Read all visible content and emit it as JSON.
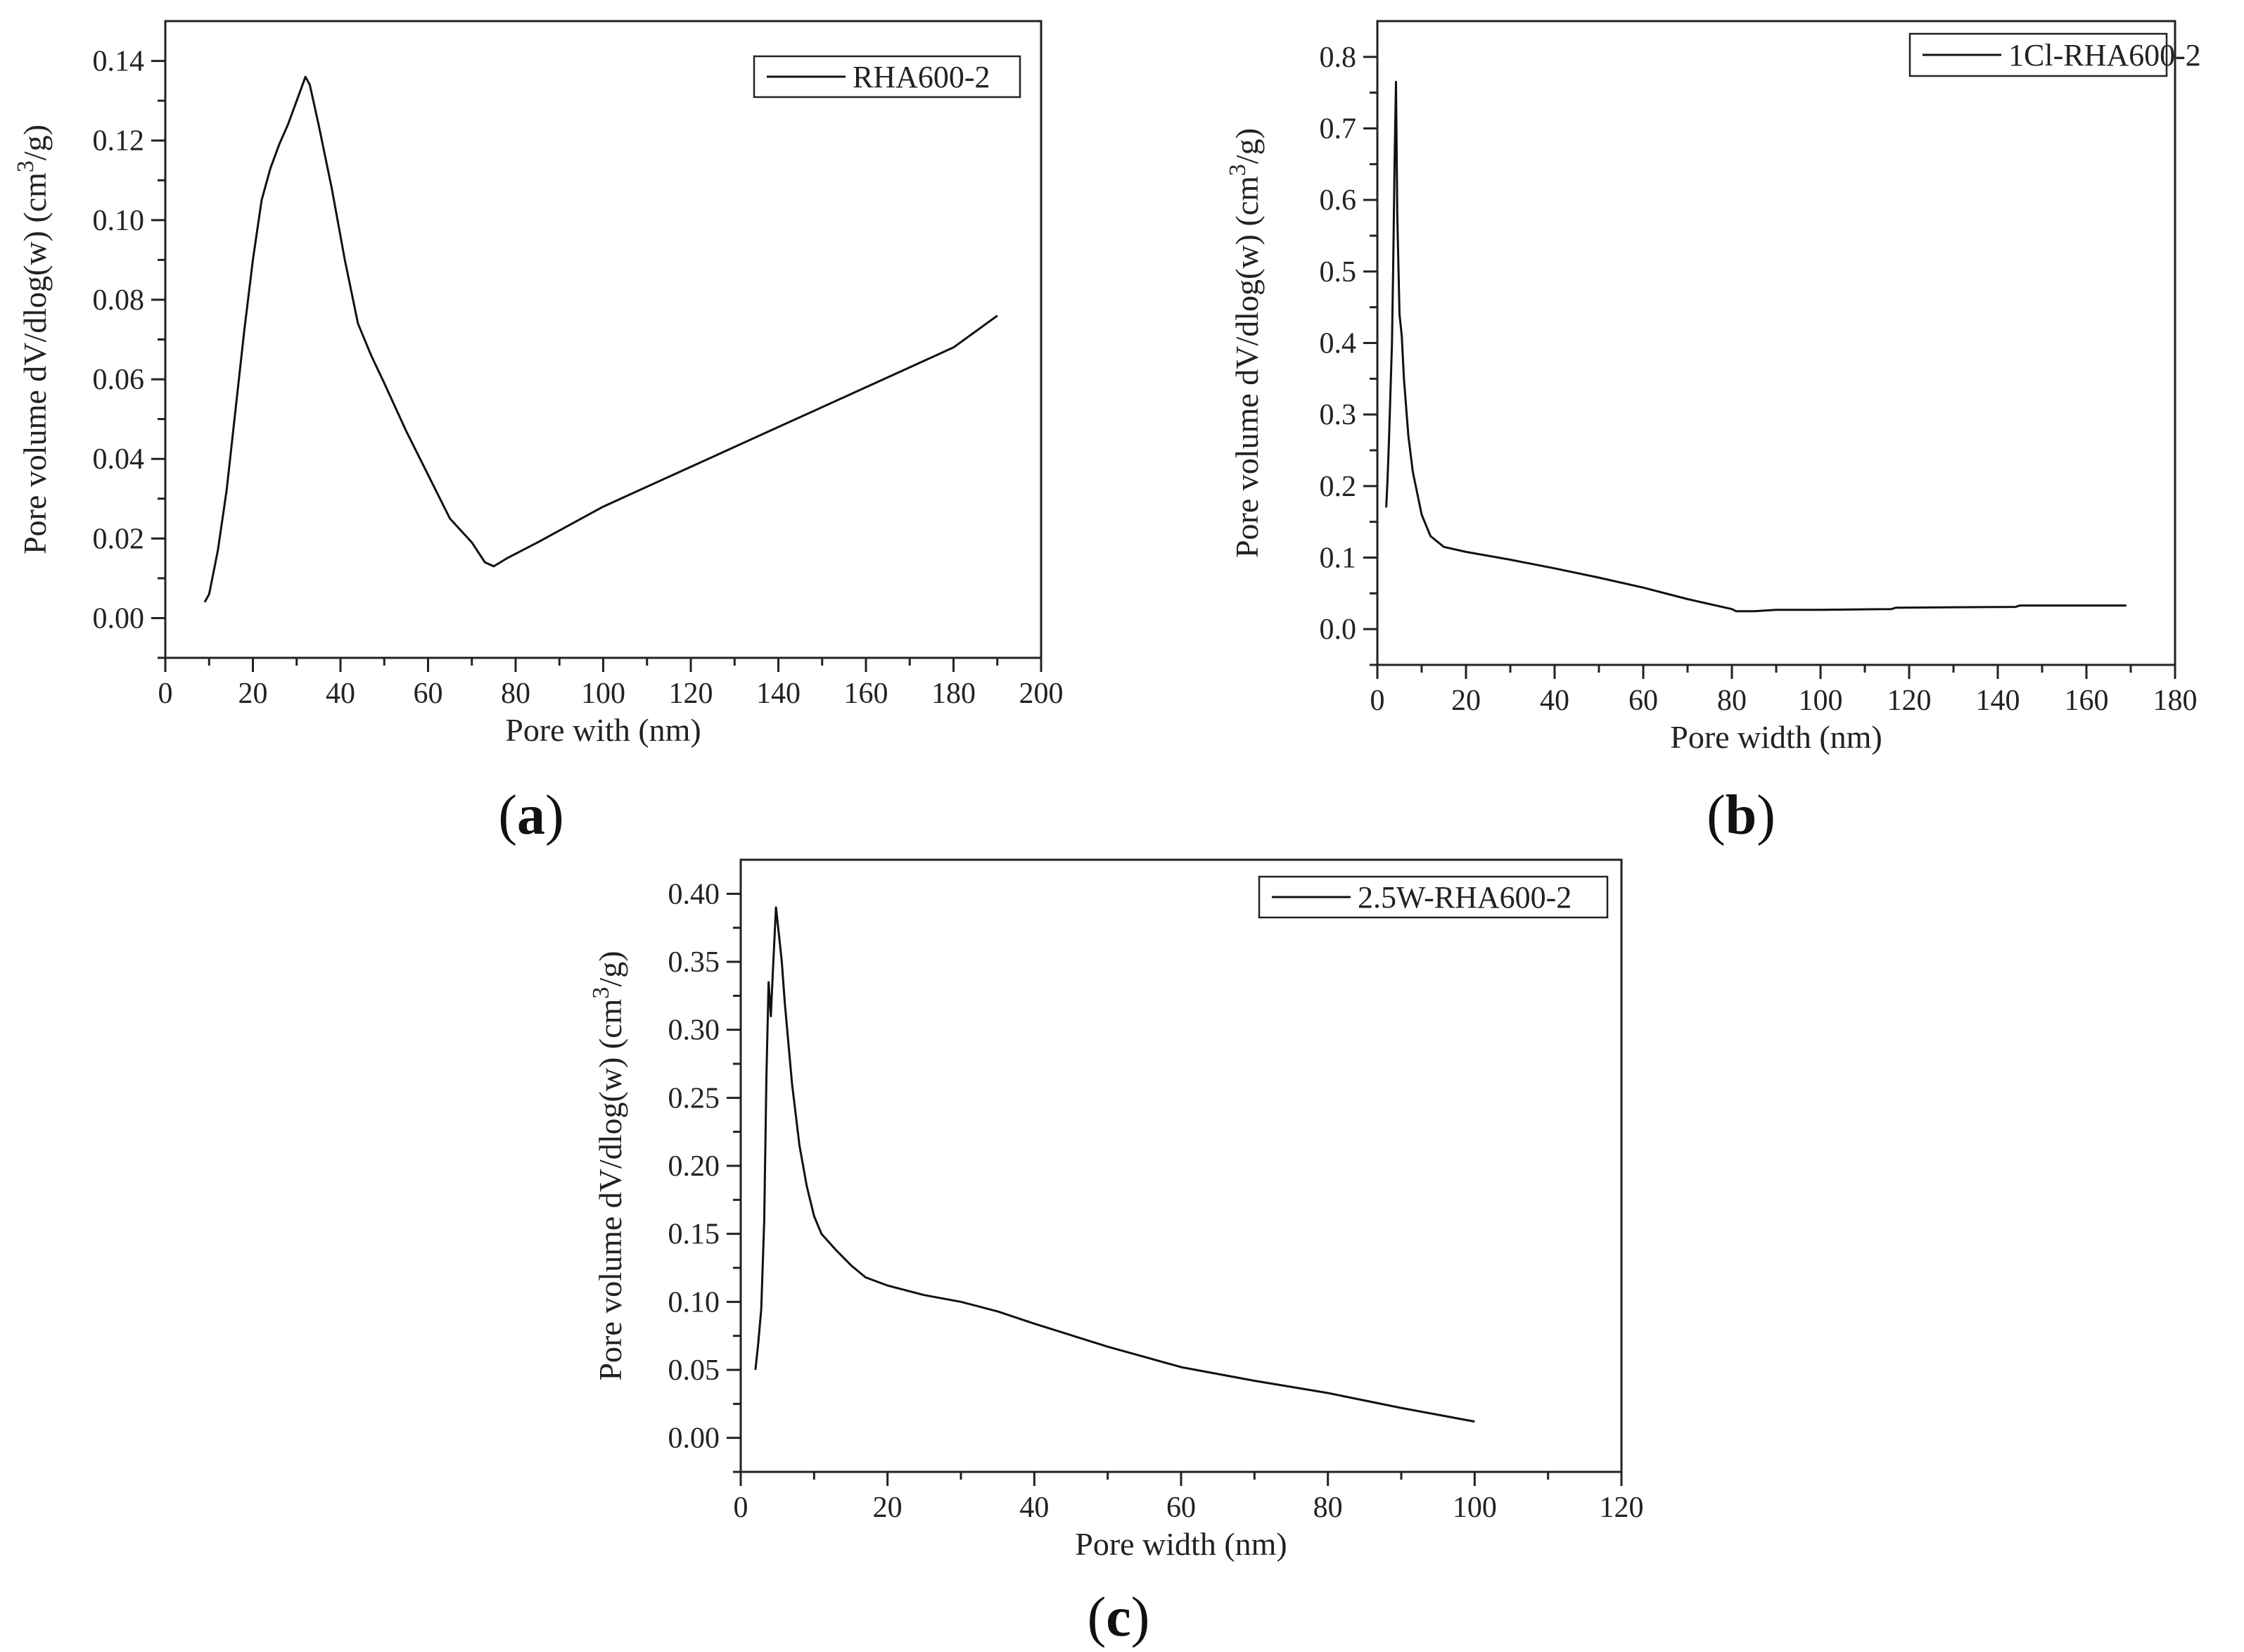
{
  "chart_data": [
    {
      "type": "line",
      "panel_label": "a",
      "xlabel": "Pore with (nm)",
      "ylabel_text": "Pore volume dV/dlog(w) (cm",
      "ylabel_sup": "3",
      "ylabel_tail": "/g)",
      "xlim": [
        0,
        200
      ],
      "ylim": [
        -0.01,
        0.15
      ],
      "xticks": [
        0,
        20,
        40,
        60,
        80,
        100,
        120,
        140,
        160,
        180,
        200
      ],
      "yticks": [
        0.0,
        0.02,
        0.04,
        0.06,
        0.08,
        0.1,
        0.12,
        0.14
      ],
      "ytick_labels": [
        "0.00",
        "0.02",
        "0.04",
        "0.06",
        "0.08",
        "0.10",
        "0.12",
        "0.14"
      ],
      "legend_position": "top-right",
      "series": [
        {
          "name": "RHA600-2",
          "x": [
            9,
            10,
            12,
            14,
            16,
            18,
            20,
            22,
            24,
            26,
            28,
            30,
            31,
            32,
            33,
            35,
            38,
            41,
            44,
            47,
            50,
            55,
            60,
            65,
            70,
            73,
            75,
            78,
            85,
            100,
            120,
            140,
            160,
            180,
            190
          ],
          "y": [
            0.004,
            0.006,
            0.017,
            0.032,
            0.052,
            0.072,
            0.09,
            0.105,
            0.113,
            0.119,
            0.124,
            0.13,
            0.133,
            0.136,
            0.134,
            0.124,
            0.108,
            0.09,
            0.074,
            0.066,
            0.059,
            0.047,
            0.036,
            0.025,
            0.019,
            0.014,
            0.013,
            0.015,
            0.019,
            0.028,
            0.038,
            0.048,
            0.058,
            0.068,
            0.076
          ]
        }
      ]
    },
    {
      "type": "line",
      "panel_label": "b",
      "xlabel": "Pore width (nm)",
      "ylabel_text": "Pore volume dV/dlog(w) (cm",
      "ylabel_sup": "3",
      "ylabel_tail": "/g)",
      "xlim": [
        0,
        180
      ],
      "ylim": [
        -0.05,
        0.85
      ],
      "xticks": [
        0,
        20,
        40,
        60,
        80,
        100,
        120,
        140,
        160,
        180
      ],
      "yticks": [
        0.0,
        0.1,
        0.2,
        0.3,
        0.4,
        0.5,
        0.6,
        0.7,
        0.8
      ],
      "ytick_labels": [
        "0.0",
        "0.1",
        "0.2",
        "0.3",
        "0.4",
        "0.5",
        "0.6",
        "0.7",
        "0.8"
      ],
      "legend_position": "top-right",
      "series": [
        {
          "name": "1Cl-RHA600-2",
          "x": [
            2.0,
            2.3,
            2.6,
            3.0,
            3.3,
            3.6,
            3.9,
            4.2,
            4.5,
            5.0,
            5.5,
            6.0,
            7.0,
            8.0,
            9.0,
            10,
            12,
            15,
            20,
            30,
            40,
            50,
            60,
            70,
            80,
            81,
            85,
            90,
            100,
            116,
            117,
            144,
            145,
            169
          ],
          "y": [
            0.17,
            0.21,
            0.26,
            0.34,
            0.4,
            0.52,
            0.66,
            0.765,
            0.58,
            0.44,
            0.41,
            0.35,
            0.27,
            0.22,
            0.19,
            0.16,
            0.13,
            0.115,
            0.108,
            0.097,
            0.085,
            0.072,
            0.058,
            0.042,
            0.028,
            0.025,
            0.025,
            0.027,
            0.027,
            0.028,
            0.03,
            0.031,
            0.033,
            0.033
          ]
        }
      ]
    },
    {
      "type": "line",
      "panel_label": "c",
      "xlabel": "Pore width (nm)",
      "ylabel_text": "Pore volume dV/dlog(w) (cm",
      "ylabel_sup": "3",
      "ylabel_tail": "/g)",
      "xlim": [
        0,
        120
      ],
      "ylim": [
        -0.025,
        0.425
      ],
      "xticks": [
        0,
        20,
        40,
        60,
        80,
        100,
        120
      ],
      "yticks": [
        0.0,
        0.05,
        0.1,
        0.15,
        0.2,
        0.25,
        0.3,
        0.35,
        0.4
      ],
      "ytick_labels": [
        "0.00",
        "0.05",
        "0.10",
        "0.15",
        "0.20",
        "0.25",
        "0.30",
        "0.35",
        "0.40"
      ],
      "legend_position": "top-right",
      "series": [
        {
          "name": "2.5W-RHA600-2",
          "x": [
            2.0,
            2.4,
            2.8,
            3.2,
            3.5,
            3.8,
            4.1,
            4.4,
            4.8,
            5.2,
            5.6,
            6.0,
            7.0,
            8.0,
            9.0,
            10,
            11,
            13,
            15,
            17,
            20,
            25,
            30,
            35,
            40,
            50,
            60,
            70,
            80,
            90,
            100
          ],
          "y": [
            0.05,
            0.07,
            0.095,
            0.16,
            0.265,
            0.335,
            0.31,
            0.345,
            0.39,
            0.37,
            0.35,
            0.32,
            0.26,
            0.215,
            0.185,
            0.163,
            0.15,
            0.138,
            0.127,
            0.118,
            0.112,
            0.105,
            0.1,
            0.093,
            0.084,
            0.067,
            0.052,
            0.042,
            0.033,
            0.022,
            0.012
          ]
        }
      ]
    }
  ]
}
